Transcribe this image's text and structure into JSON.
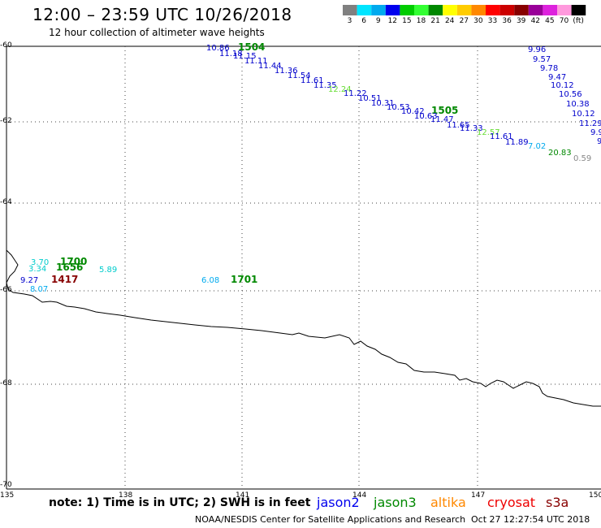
{
  "header": {
    "title": "12:00  – 23:59  UTC  10/26/2018",
    "subtitle": "12 hour collection of altimeter wave heights"
  },
  "colorbar": {
    "labels": [
      "3",
      "6",
      "9",
      "12",
      "15",
      "18",
      "21",
      "24",
      "27",
      "30",
      "33",
      "36",
      "39",
      "42",
      "45",
      "70",
      "(ft)"
    ],
    "colors": [
      "#808080",
      "#00e5ff",
      "#00aaee",
      "#0000ee",
      "#00cc00",
      "#33ff33",
      "#008800",
      "#ffff00",
      "#ffcc00",
      "#ff8800",
      "#ff0000",
      "#cc0000",
      "#880000",
      "#990099",
      "#dd22dd",
      "#ff99dd",
      "#000000"
    ]
  },
  "axes": {
    "lat_labels": [
      "-60",
      "-62",
      "-64",
      "-66",
      "-68",
      "-70"
    ],
    "lon_labels": [
      "135",
      "138",
      "141",
      "144",
      "147",
      "150"
    ]
  },
  "observations": [
    {
      "text": "10.86",
      "color": "#0000cc"
    },
    {
      "text": "1504",
      "color": "#008800",
      "bold": true
    },
    {
      "text": "11.18",
      "color": "#0000cc"
    },
    {
      "text": "11.15",
      "color": "#0000cc"
    },
    {
      "text": "11.11",
      "color": "#0000cc"
    },
    {
      "text": "11.44",
      "color": "#0000cc"
    },
    {
      "text": "11.36",
      "color": "#0000cc"
    },
    {
      "text": "11.54",
      "color": "#0000cc"
    },
    {
      "text": "11.61",
      "color": "#0000cc"
    },
    {
      "text": "11.35",
      "color": "#0000cc"
    },
    {
      "text": "12.24",
      "color": "#66dd33"
    },
    {
      "text": "11.22",
      "color": "#0000cc"
    },
    {
      "text": "10.51",
      "color": "#0000cc"
    },
    {
      "text": "10.31",
      "color": "#0000cc"
    },
    {
      "text": "10.53",
      "color": "#0000cc"
    },
    {
      "text": "10.42",
      "color": "#0000cc"
    },
    {
      "text": "1505",
      "color": "#008800",
      "bold": true
    },
    {
      "text": "10.63",
      "color": "#0000cc"
    },
    {
      "text": "11.47",
      "color": "#0000cc"
    },
    {
      "text": "11.65",
      "color": "#0000cc"
    },
    {
      "text": "11.33",
      "color": "#0000cc"
    },
    {
      "text": "12.57",
      "color": "#66dd33"
    },
    {
      "text": "11.61",
      "color": "#0000cc"
    },
    {
      "text": "11.89",
      "color": "#0000cc"
    },
    {
      "text": "7.02",
      "color": "#00aaee"
    },
    {
      "text": "20.83",
      "color": "#008800"
    },
    {
      "text": "0.59",
      "color": "#888888"
    },
    {
      "text": "9.96",
      "color": "#0000cc"
    },
    {
      "text": "9.57",
      "color": "#0000cc"
    },
    {
      "text": "9.78",
      "color": "#0000cc"
    },
    {
      "text": "9.47",
      "color": "#0000cc"
    },
    {
      "text": "10.12",
      "color": "#0000cc"
    },
    {
      "text": "10.56",
      "color": "#0000cc"
    },
    {
      "text": "10.38",
      "color": "#0000cc"
    },
    {
      "text": "10.12",
      "color": "#0000cc"
    },
    {
      "text": "11.29",
      "color": "#0000cc"
    },
    {
      "text": "9.9",
      "color": "#0000cc"
    },
    {
      "text": "9",
      "color": "#0000cc"
    },
    {
      "text": "3.70",
      "color": "#00cccc"
    },
    {
      "text": "1700",
      "color": "#008800",
      "bold": true
    },
    {
      "text": "3.34",
      "color": "#00cccc"
    },
    {
      "text": "1656",
      "color": "#008800",
      "bold": true
    },
    {
      "text": "5.89",
      "color": "#00cccc"
    },
    {
      "text": "9.27",
      "color": "#0000cc"
    },
    {
      "text": "1417",
      "color": "#880000",
      "bold": true
    },
    {
      "text": "8.07",
      "color": "#00aaee"
    },
    {
      "text": "6.08",
      "color": "#00aaee"
    },
    {
      "text": "1701",
      "color": "#008800",
      "bold": true
    }
  ],
  "footer": {
    "note": "note:  1) Time is in UTC;  2) SWH is in feet",
    "satellites": [
      {
        "name": "jason2",
        "color": "#0000ee"
      },
      {
        "name": "jason3",
        "color": "#008800"
      },
      {
        "name": "altika",
        "color": "#ff8800"
      },
      {
        "name": "cryosat",
        "color": "#ee0000"
      },
      {
        "name": "s3a",
        "color": "#880000"
      }
    ],
    "credit": "NOAA/NESDIS Center for Satellite Applications and Research",
    "timestamp": "Oct 27 12:27:54 UTC 2018"
  }
}
